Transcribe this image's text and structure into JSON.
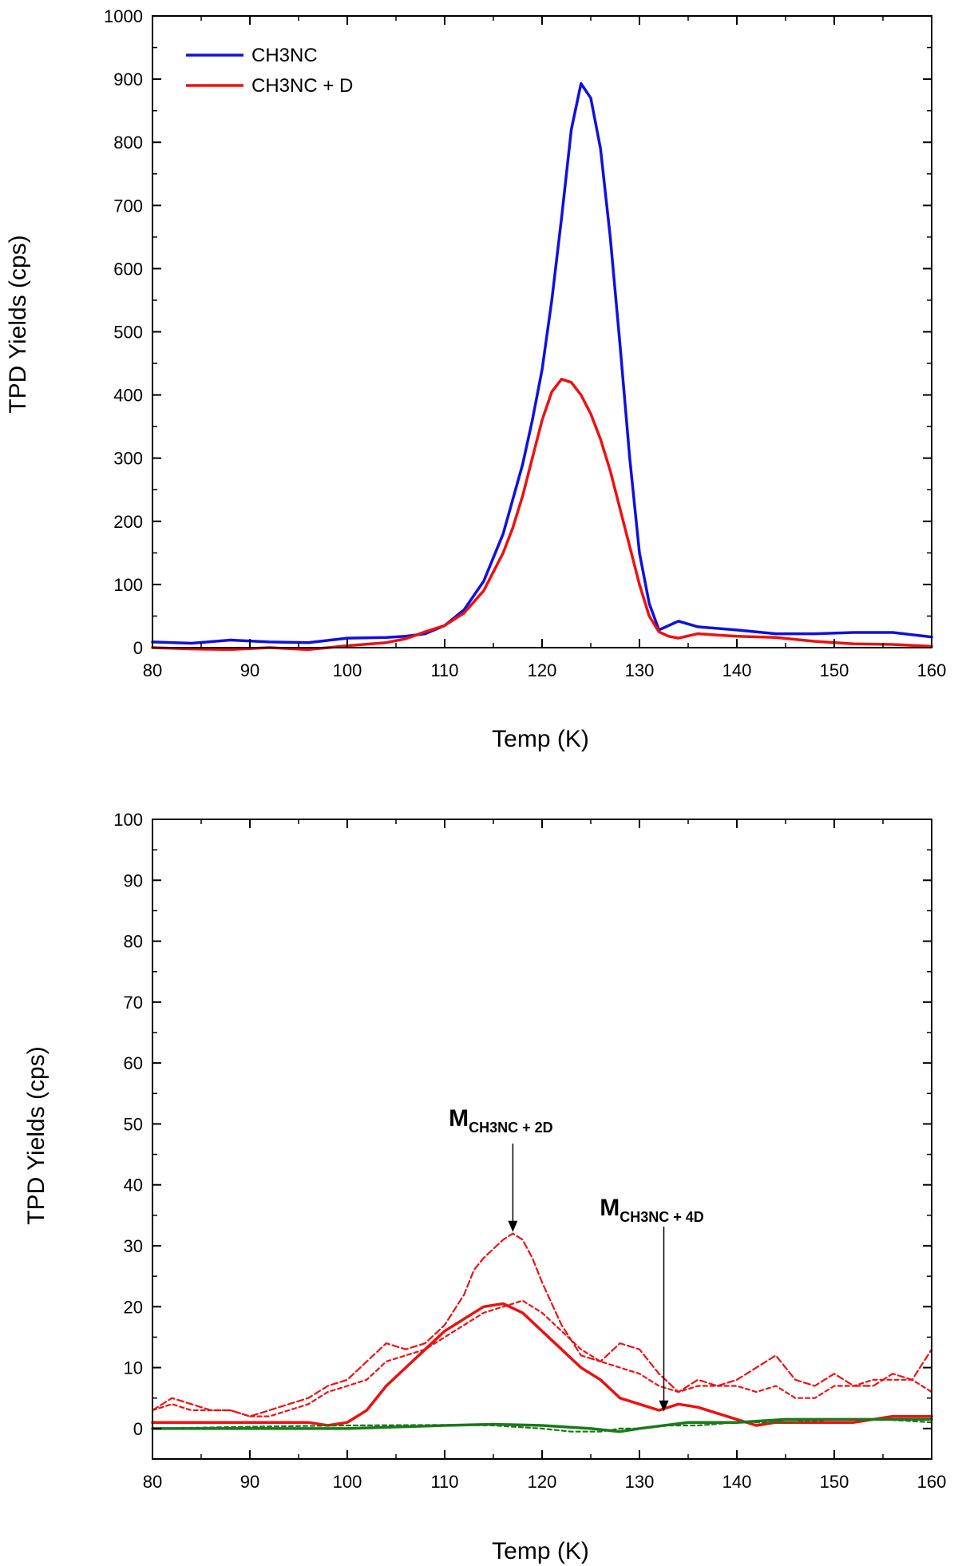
{
  "chart_data": [
    {
      "type": "line",
      "xlabel": "Temp (K)",
      "ylabel": "TPD Yields (cps)",
      "xlim": [
        80,
        160
      ],
      "ylim": [
        0,
        1000
      ],
      "xticks": [
        "80",
        "90",
        "100",
        "110",
        "120",
        "130",
        "140",
        "150",
        "160"
      ],
      "yticks": [
        "0",
        "100",
        "200",
        "300",
        "400",
        "500",
        "600",
        "700",
        "800",
        "900",
        "1000"
      ],
      "legend": {
        "placement": "top-left"
      },
      "series": [
        {
          "name": "CH3NC",
          "color": "#1010e0",
          "style": "solid",
          "x": [
            80,
            84,
            88,
            92,
            96,
            100,
            104,
            106,
            108,
            110,
            112,
            114,
            116,
            118,
            119,
            120,
            121,
            122,
            123,
            124,
            125,
            126,
            127,
            128,
            129,
            130,
            131,
            132,
            134,
            136,
            140,
            144,
            148,
            152,
            156,
            160
          ],
          "y": [
            9,
            7,
            12,
            9,
            8,
            15,
            16,
            18,
            22,
            35,
            60,
            105,
            180,
            290,
            360,
            440,
            550,
            680,
            820,
            893,
            870,
            790,
            650,
            480,
            300,
            150,
            70,
            28,
            42,
            33,
            28,
            22,
            22,
            24,
            24,
            17
          ]
        },
        {
          "name": "CH3NC + D",
          "color": "#ee1010",
          "style": "solid",
          "x": [
            80,
            84,
            88,
            92,
            96,
            100,
            104,
            106,
            108,
            110,
            112,
            114,
            116,
            117,
            118,
            119,
            120,
            121,
            122,
            123,
            124,
            125,
            126,
            127,
            128,
            129,
            130,
            131,
            132,
            133,
            134,
            136,
            140,
            144,
            148,
            152,
            156,
            160
          ],
          "y": [
            0,
            -2,
            -3,
            0,
            -3,
            3,
            8,
            14,
            25,
            35,
            55,
            90,
            150,
            190,
            240,
            300,
            360,
            405,
            425,
            420,
            400,
            370,
            330,
            280,
            220,
            160,
            100,
            50,
            25,
            18,
            15,
            22,
            18,
            16,
            10,
            6,
            5,
            2
          ]
        }
      ]
    },
    {
      "type": "line",
      "xlabel": "Temp (K)",
      "ylabel": "TPD Yields (cps)",
      "xlim": [
        80,
        160
      ],
      "ylim": [
        -5,
        100
      ],
      "xticks": [
        "80",
        "90",
        "100",
        "110",
        "120",
        "130",
        "140",
        "150",
        "160"
      ],
      "yticks": [
        "0",
        "10",
        "20",
        "30",
        "40",
        "50",
        "60",
        "70",
        "80",
        "90",
        "100"
      ],
      "series": [
        {
          "name": "red-solid",
          "color": "#ee1010",
          "style": "solid",
          "x": [
            80,
            84,
            88,
            92,
            96,
            98,
            100,
            102,
            104,
            106,
            108,
            110,
            112,
            114,
            116,
            118,
            120,
            122,
            124,
            126,
            128,
            130,
            132,
            134,
            136,
            138,
            140,
            142,
            144,
            148,
            152,
            156,
            160
          ],
          "y": [
            1,
            1,
            1,
            1,
            1,
            0.5,
            1,
            3,
            7,
            10,
            13,
            16,
            18,
            20,
            20.5,
            19,
            16,
            13,
            10,
            8,
            5,
            4,
            3,
            4,
            3.5,
            2.5,
            1.5,
            0.5,
            1,
            1,
            1,
            2,
            2
          ]
        },
        {
          "name": "red-dash-large",
          "color": "#ee1010",
          "style": "dashed",
          "x": [
            80,
            82,
            84,
            86,
            88,
            90,
            92,
            94,
            96,
            98,
            100,
            102,
            104,
            106,
            108,
            110,
            112,
            113,
            114,
            116,
            117,
            118,
            119,
            120,
            122,
            124,
            126,
            128,
            130,
            132,
            134,
            136,
            138,
            140,
            142,
            144,
            146,
            148,
            150,
            152,
            154,
            156,
            158,
            160
          ],
          "y": [
            3,
            5,
            4,
            3,
            3,
            2,
            3,
            4,
            5,
            7,
            8,
            11,
            14,
            13,
            14,
            17,
            22,
            26,
            28,
            31,
            32,
            31,
            28,
            24,
            17,
            12,
            11,
            14,
            13,
            9,
            6,
            8,
            7,
            8,
            10,
            12,
            8,
            7,
            9,
            7,
            7,
            9,
            8,
            13
          ]
        },
        {
          "name": "red-dash-small",
          "color": "#ee1010",
          "style": "dashed",
          "x": [
            80,
            82,
            84,
            86,
            88,
            90,
            92,
            94,
            96,
            98,
            100,
            102,
            104,
            106,
            108,
            110,
            112,
            114,
            116,
            118,
            120,
            122,
            124,
            126,
            128,
            130,
            132,
            134,
            136,
            138,
            140,
            142,
            144,
            146,
            148,
            150,
            152,
            154,
            156,
            158,
            160
          ],
          "y": [
            3,
            4,
            3,
            3,
            3,
            2,
            2,
            3,
            4,
            6,
            7,
            8,
            11,
            12,
            13,
            15,
            17,
            19,
            20,
            21,
            19,
            16,
            13,
            11,
            10,
            9,
            7,
            6,
            7,
            7,
            7,
            6,
            7,
            5,
            5,
            7,
            7,
            8,
            8,
            8,
            6
          ]
        },
        {
          "name": "green-solid",
          "color": "#1a7a1a",
          "style": "solid",
          "x": [
            80,
            90,
            100,
            110,
            115,
            120,
            125,
            128,
            130,
            135,
            140,
            145,
            150,
            155,
            160
          ],
          "y": [
            0,
            0,
            0,
            0.5,
            0.7,
            0.5,
            0,
            -0.5,
            0,
            1,
            1,
            1.5,
            1.5,
            1.5,
            1.5
          ]
        },
        {
          "name": "green-dash",
          "color": "#1a7a1a",
          "style": "dashed",
          "x": [
            80,
            90,
            100,
            110,
            115,
            120,
            123,
            126,
            128,
            130,
            133,
            136,
            140,
            145,
            150,
            155,
            160
          ],
          "y": [
            0,
            0.3,
            0.5,
            0.6,
            0.5,
            0,
            -0.5,
            -0.5,
            0,
            0,
            0.5,
            0.5,
            1,
            1,
            1.5,
            1.5,
            1
          ]
        }
      ],
      "annotations": [
        {
          "main": "M",
          "sub": "CH3NC + 2D",
          "x": 117,
          "y": 32
        },
        {
          "main": "M",
          "sub": "CH3NC + 4D",
          "x": 132.5,
          "y": 2.5
        }
      ]
    }
  ]
}
